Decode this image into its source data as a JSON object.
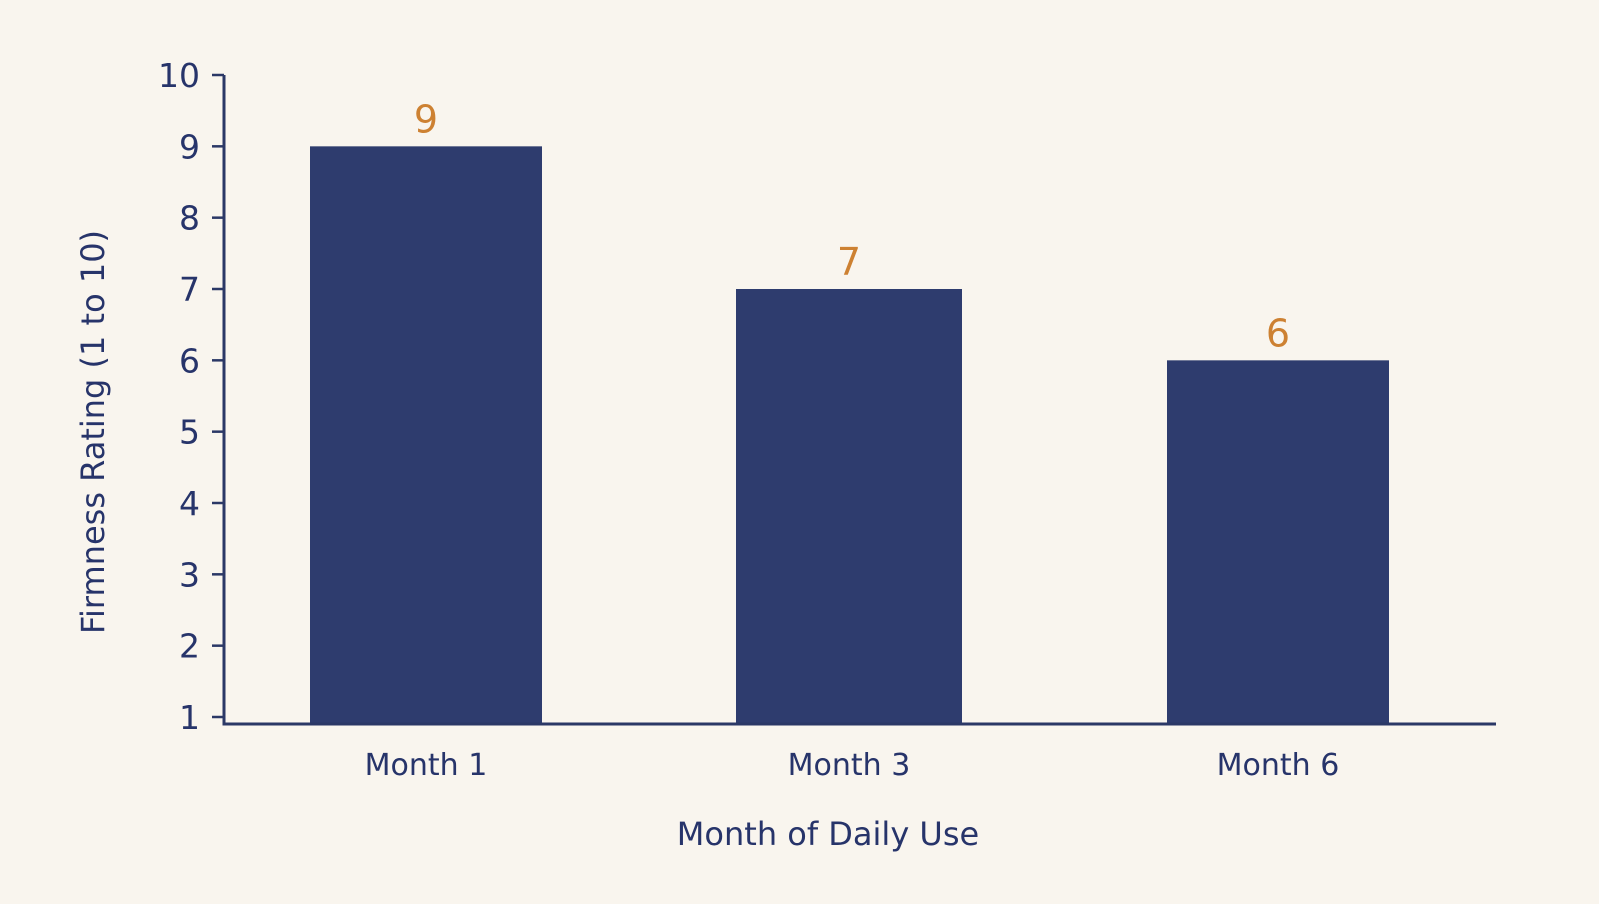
{
  "colors": {
    "background": "#f9f5ee",
    "bar": "#2e3c6e",
    "axis": "#2b3866",
    "text": "#27346a",
    "data_label": "#cd8132"
  },
  "chart_data": {
    "type": "bar",
    "categories": [
      "Month 1",
      "Month 3",
      "Month 6"
    ],
    "values": [
      9,
      7,
      6
    ],
    "data_labels": [
      "9",
      "7",
      "6"
    ],
    "title": "",
    "xlabel": "Month of Daily Use",
    "ylabel": "Firmness Rating (1 to 10)",
    "ylim": [
      1,
      10
    ],
    "yticks": [
      1,
      2,
      3,
      4,
      5,
      6,
      7,
      8,
      9,
      10
    ],
    "grid": false,
    "legend": "none"
  }
}
